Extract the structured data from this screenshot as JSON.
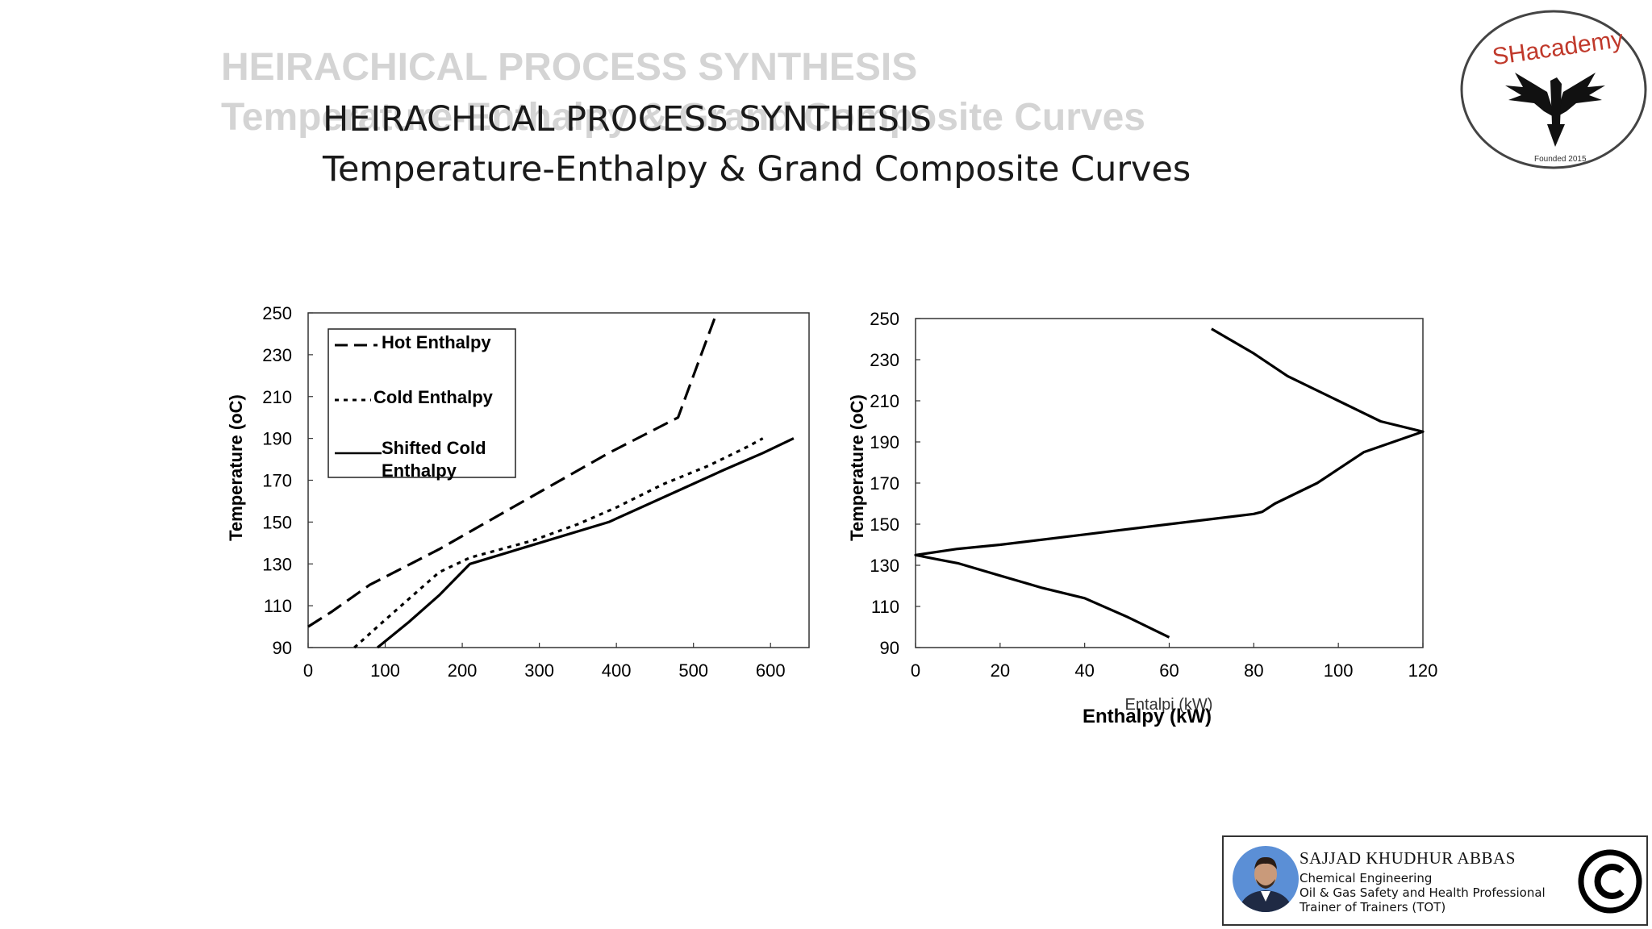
{
  "slide": {
    "ghost_title_line1": "HEIRACHICAL PROCESS SYNTHESIS",
    "ghost_title_line2": "Temperature-Enthalpy & Grand Composite Curves",
    "title_line1": "HEIRACHICAL PROCESS SYNTHESIS",
    "title_line2": "Temperature-Enthalpy & Grand Composite Curves"
  },
  "logo": {
    "text": "SHacademy",
    "subtext": "Founded 2015"
  },
  "chart_data": [
    {
      "type": "line",
      "title": "",
      "xlabel": "",
      "ylabel": "Temperature (oC)",
      "xlim": [
        0,
        650
      ],
      "ylim": [
        90,
        250
      ],
      "xticks": [
        "0",
        "100",
        "200",
        "300",
        "400",
        "500",
        "600"
      ],
      "yticks": [
        "90",
        "110",
        "130",
        "150",
        "170",
        "190",
        "210",
        "230",
        "250"
      ],
      "grid": false,
      "legend": "top-left, boxed",
      "series": [
        {
          "name": "Hot Enthalpy",
          "style": "dashed",
          "x": [
            0,
            30,
            80,
            170,
            270,
            390,
            480,
            490,
            510,
            530
          ],
          "y": [
            100,
            107,
            120,
            137,
            158,
            183,
            200,
            210,
            230,
            250
          ]
        },
        {
          "name": "Cold Enthalpy",
          "style": "dotted",
          "x": [
            60,
            90,
            130,
            170,
            210,
            290,
            350,
            400,
            460,
            520,
            570,
            590
          ],
          "y": [
            90,
            100,
            113,
            126,
            133,
            141,
            149,
            157,
            168,
            177,
            186,
            190
          ]
        },
        {
          "name": "Shifted  Cold Enthalpy",
          "style": "solid",
          "x": [
            90,
            130,
            170,
            210,
            300,
            390,
            480,
            540,
            590,
            630
          ],
          "y": [
            90,
            102,
            115,
            130,
            140,
            150,
            165,
            175,
            183,
            190
          ]
        }
      ]
    },
    {
      "type": "line",
      "title": "",
      "xlabel": "Enthalpy (kW)",
      "xlabel_ghost": "Entalpi (kW)",
      "ylabel": "Temperature (oC)",
      "xlim": [
        0,
        120
      ],
      "ylim": [
        90,
        250
      ],
      "xticks": [
        "0",
        "20",
        "40",
        "60",
        "80",
        "100",
        "120"
      ],
      "yticks": [
        "90",
        "110",
        "130",
        "150",
        "170",
        "190",
        "210",
        "230",
        "250"
      ],
      "grid": false,
      "series": [
        {
          "style": "solid",
          "x": [
            70,
            80,
            88,
            100,
            110,
            120,
            106,
            95,
            85,
            82,
            80,
            60,
            40,
            20,
            10,
            0,
            5,
            10,
            20,
            30,
            40,
            50,
            60
          ],
          "y": [
            245,
            233,
            222,
            210,
            200,
            195,
            185,
            170,
            160,
            156,
            155,
            150,
            145,
            140,
            138,
            135,
            133,
            131,
            125,
            119,
            114,
            105,
            95
          ]
        }
      ]
    }
  ],
  "presenter": {
    "name": "SAJJAD KHUDHUR ABBAS",
    "line1": "Chemical Engineering",
    "line2": "Oil & Gas Safety and Health Professional",
    "line3": "Trainer of Trainers (TOT)"
  },
  "colors": {
    "ink": "#000000",
    "ghost": "#d4d4d4",
    "suit": "#1f2a44",
    "skin": "#c99a7a"
  },
  "icons": [
    "copyright-icon",
    "eagle-icon",
    "avatar"
  ]
}
